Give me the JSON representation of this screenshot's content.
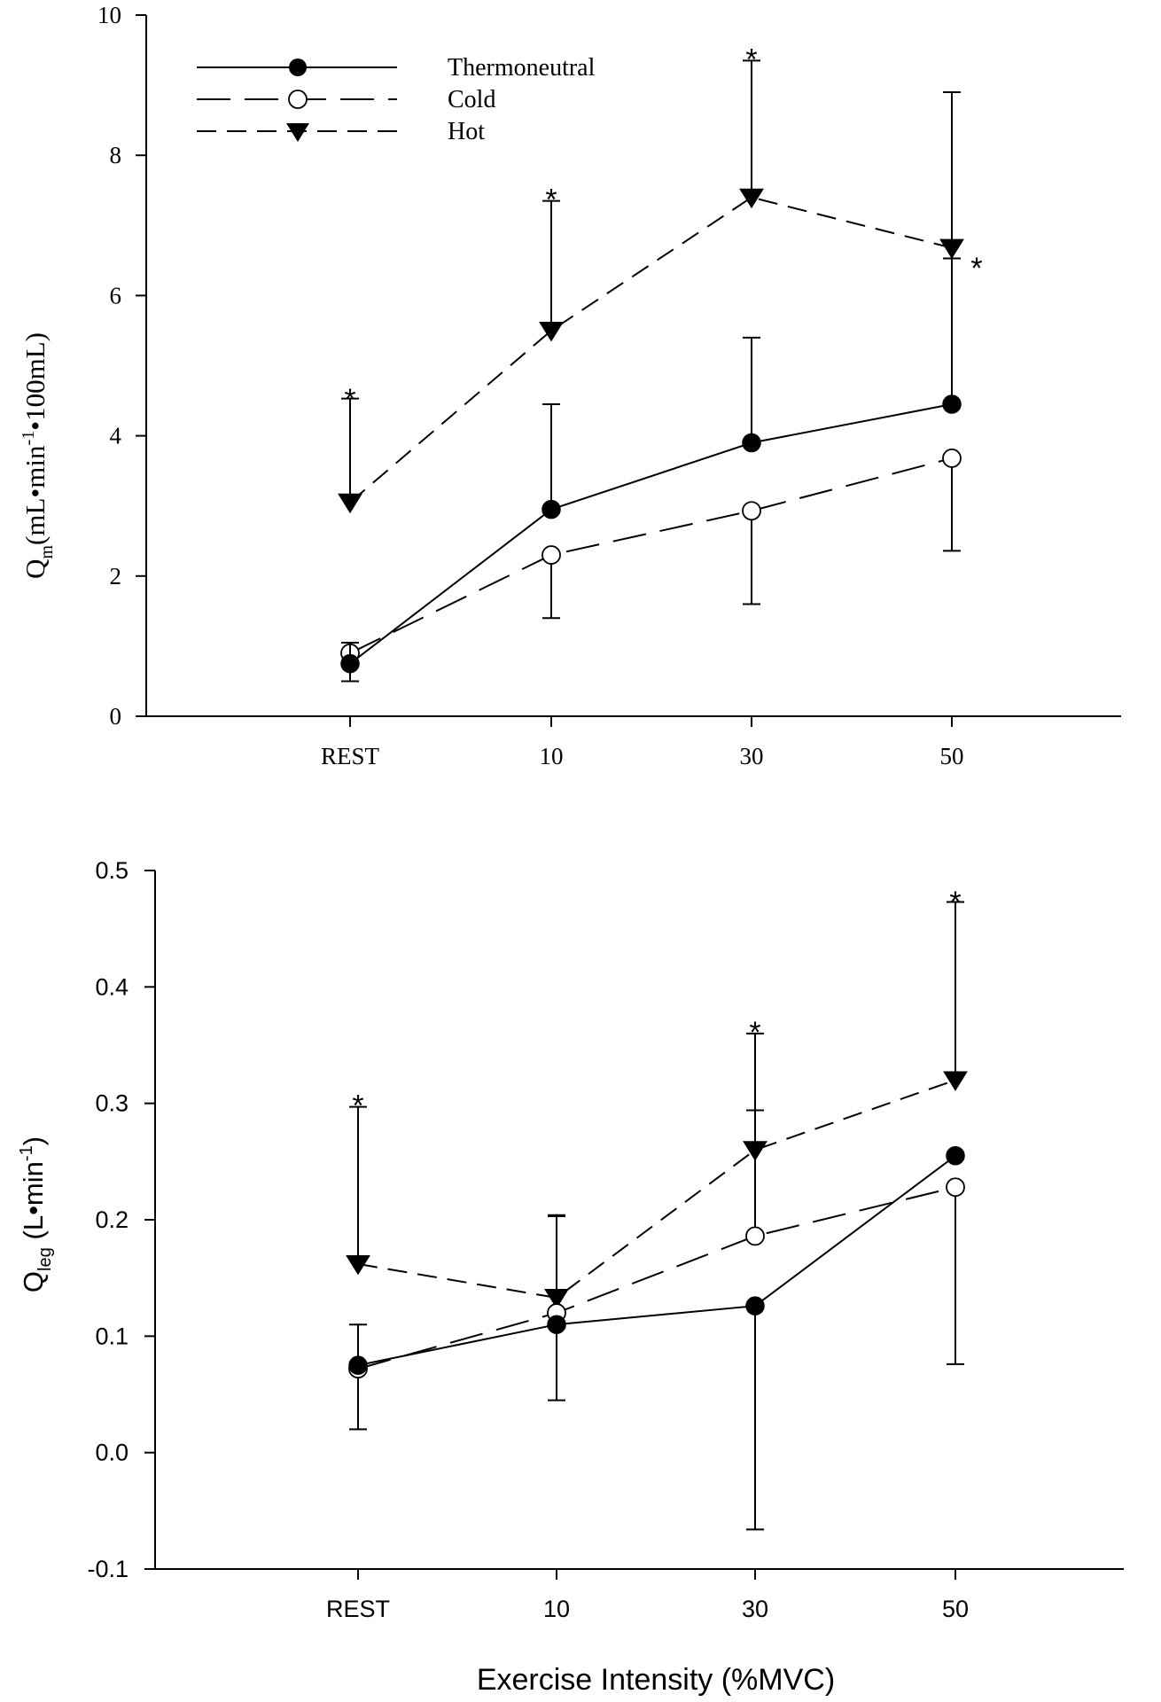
{
  "chart_data": [
    {
      "type": "line",
      "categories": [
        "REST",
        "10",
        "30",
        "50"
      ],
      "ylabel": {
        "base": "Q",
        "sub": "m",
        "text": "(mL•min",
        "sup": "-1",
        "text2": "•100mL)"
      },
      "xlabel": "",
      "ylim": [
        0,
        10
      ],
      "yticks": [
        0,
        2,
        4,
        6,
        8,
        10
      ],
      "ytick_labels": [
        "0",
        "2",
        "4",
        "6",
        "8",
        "10"
      ],
      "legend_position": "top-left",
      "series": [
        {
          "name": "Thermoneutral",
          "marker": "filled-circle",
          "dash": "solid",
          "values": [
            0.75,
            2.95,
            3.9,
            4.45
          ],
          "err_upper": [
            0.3,
            1.5,
            1.5,
            4.45
          ],
          "err_lower": [
            0.25,
            0,
            0,
            0
          ]
        },
        {
          "name": "Cold",
          "marker": "open-circle",
          "dash": "long-dash",
          "values": [
            0.9,
            2.3,
            2.93,
            3.68
          ],
          "err_upper": [
            0,
            0,
            0,
            0
          ],
          "err_lower": [
            0,
            0.9,
            1.33,
            1.32
          ]
        },
        {
          "name": "Hot",
          "marker": "filled-triangle-down",
          "dash": "short-dash",
          "values": [
            3.05,
            5.5,
            7.4,
            6.68
          ],
          "err_upper": [
            1.48,
            1.85,
            1.95,
            0
          ],
          "err_lower": [
            0,
            0,
            0,
            0.15
          ]
        }
      ],
      "significance": [
        {
          "category": "REST",
          "y": 4.55,
          "text": "*"
        },
        {
          "category": "10",
          "y": 7.4,
          "text": "*"
        },
        {
          "category": "30",
          "y": 9.4,
          "text": "*"
        },
        {
          "category": "50",
          "y": 6.6,
          "text": "*",
          "offset": "right"
        }
      ]
    },
    {
      "type": "line",
      "categories": [
        "REST",
        "10",
        "30",
        "50"
      ],
      "ylabel": {
        "base": "Q",
        "sub": "leg",
        "text": " (L•min",
        "sup": "-1",
        "text2": ")"
      },
      "xlabel": "Exercise Intensity (%MVC)",
      "ylim": [
        -0.1,
        0.5
      ],
      "yticks": [
        -0.1,
        0.0,
        0.1,
        0.2,
        0.3,
        0.4,
        0.5
      ],
      "ytick_labels": [
        "-0.1",
        "0.0",
        "0.1",
        "0.2",
        "0.3",
        "0.4",
        "0.5"
      ],
      "series": [
        {
          "name": "Thermoneutral",
          "marker": "filled-circle",
          "dash": "solid",
          "values": [
            0.075,
            0.11,
            0.126,
            0.255
          ],
          "err_upper": [
            0,
            0,
            0,
            0
          ],
          "err_lower": [
            0,
            0.065,
            0.192,
            0
          ]
        },
        {
          "name": "Cold",
          "marker": "open-circle",
          "dash": "long-dash",
          "values": [
            0.072,
            0.12,
            0.186,
            0.228
          ],
          "err_upper": [
            0.038,
            0.083,
            0.108,
            0
          ],
          "err_lower": [
            0.052,
            0,
            0,
            0.152
          ]
        },
        {
          "name": "Hot",
          "marker": "filled-triangle-down",
          "dash": "short-dash",
          "values": [
            0.162,
            0.133,
            0.26,
            0.32
          ],
          "err_upper": [
            0.135,
            0.071,
            0.1,
            0.153
          ],
          "err_lower": [
            0,
            0,
            0,
            0
          ]
        }
      ],
      "significance": [
        {
          "category": "REST",
          "y": 0.3,
          "text": "*"
        },
        {
          "category": "30",
          "y": 0.363,
          "text": "*"
        },
        {
          "category": "50",
          "y": 0.475,
          "text": "*"
        }
      ]
    }
  ]
}
